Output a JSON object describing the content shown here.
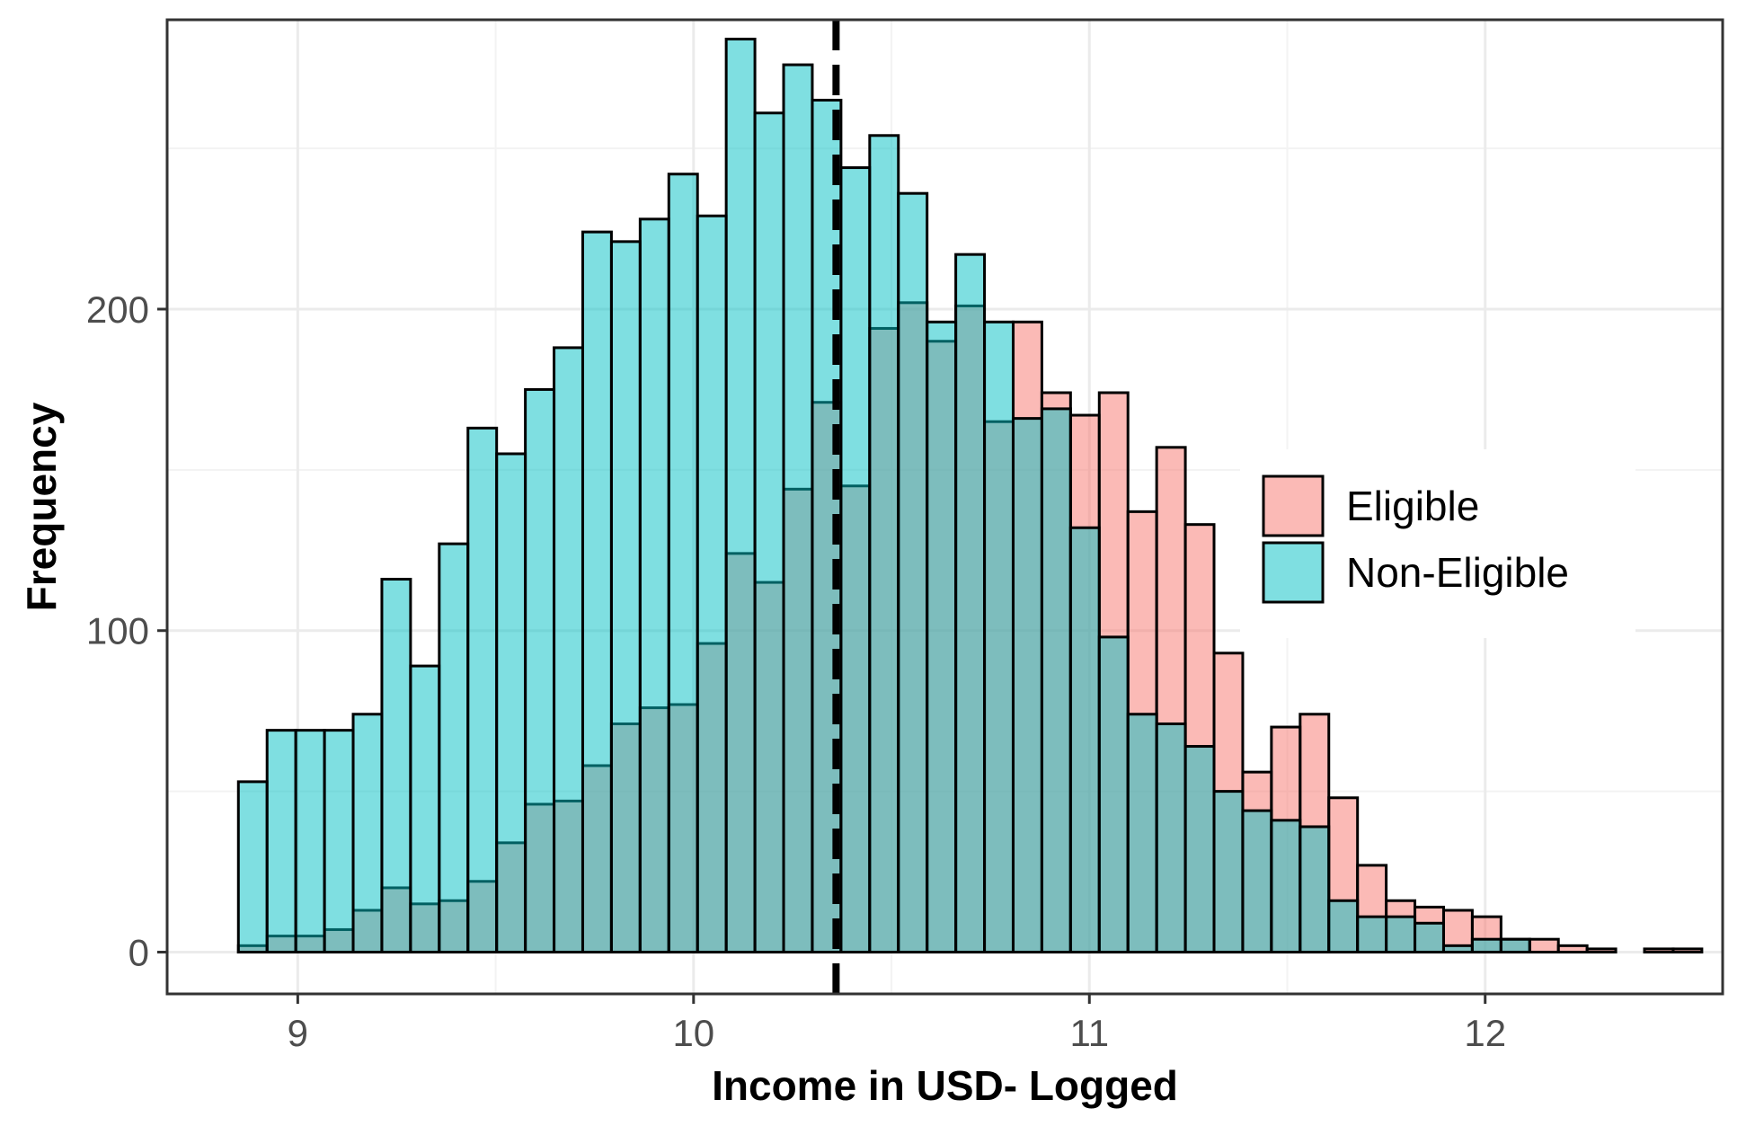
{
  "chart_data": {
    "type": "bar",
    "subtype": "overlapping-histogram",
    "title": "",
    "xlabel": "Income in USD- Logged",
    "ylabel": "Frequency",
    "xlim": [
      8.67,
      12.6
    ],
    "ylim": [
      -13,
      290
    ],
    "x_ticks": [
      9,
      10,
      11,
      12
    ],
    "y_ticks": [
      0,
      100,
      200
    ],
    "bin_start": 8.85,
    "bin_width": 0.0725,
    "grid": true,
    "legend_position": "right",
    "vline": {
      "x": 10.36,
      "style": "dashed",
      "color": "#000000"
    },
    "series": [
      {
        "name": "Eligible",
        "color": "#F8766D",
        "values": [
          2,
          5,
          5,
          7,
          13,
          20,
          15,
          16,
          22,
          34,
          46,
          47,
          58,
          71,
          76,
          77,
          96,
          124,
          115,
          144,
          171,
          145,
          194,
          202,
          190,
          201,
          165,
          196,
          174,
          167,
          174,
          137,
          157,
          133,
          93,
          56,
          70,
          74,
          48,
          27,
          16,
          14,
          13,
          11,
          4,
          4,
          2,
          1,
          0,
          1,
          1
        ]
      },
      {
        "name": "Non-Eligible",
        "color": "#00BFC4",
        "values": [
          53,
          69,
          69,
          69,
          74,
          116,
          89,
          127,
          163,
          155,
          175,
          188,
          224,
          221,
          228,
          242,
          229,
          284,
          261,
          276,
          265,
          244,
          254,
          236,
          196,
          217,
          196,
          166,
          169,
          132,
          98,
          74,
          71,
          64,
          50,
          44,
          41,
          39,
          16,
          11,
          11,
          9,
          2,
          4,
          4,
          0,
          0,
          0,
          0,
          0,
          0
        ]
      }
    ]
  },
  "colors": {
    "eligible_fill": "#F8766D",
    "non_eligible_fill": "#00BFC4",
    "bar_opacity": 0.5,
    "bar_outline": "#000000",
    "grid_major": "#ebebeb",
    "grid_minor": "#f3f3f3",
    "panel_border": "#333333"
  }
}
